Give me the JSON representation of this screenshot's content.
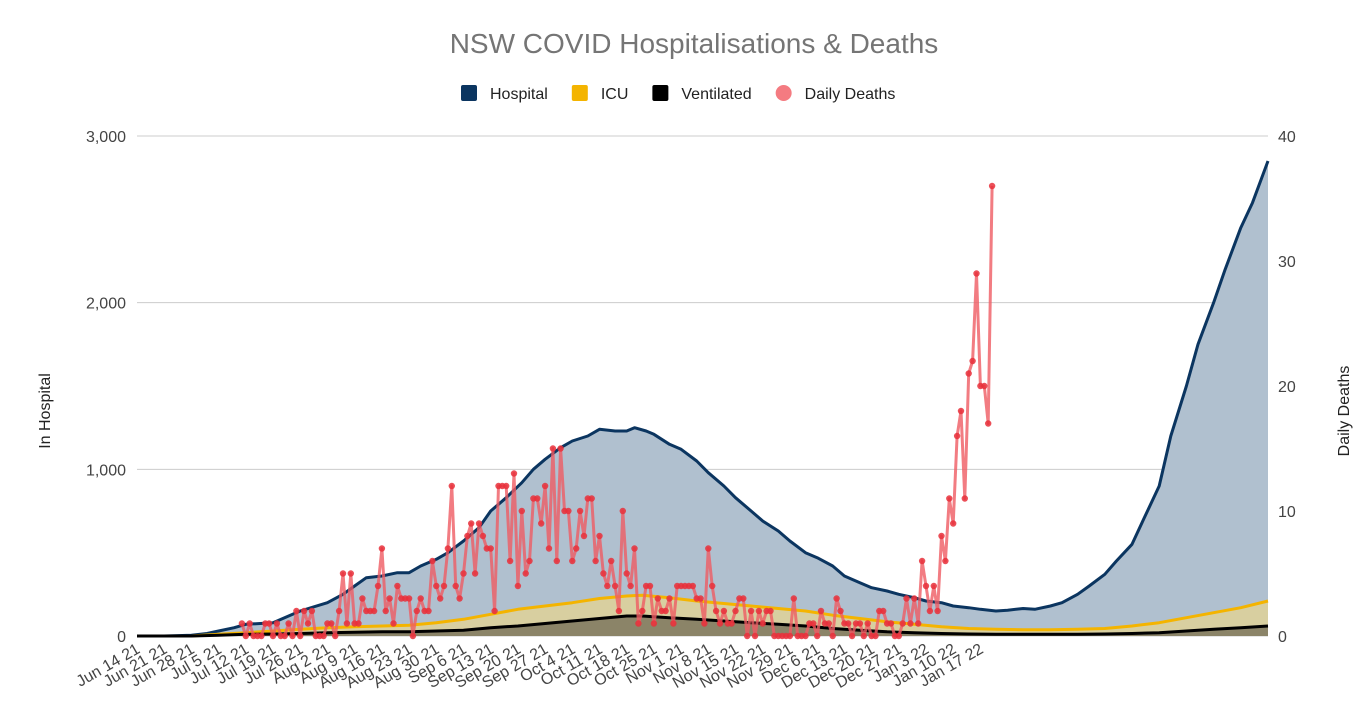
{
  "chart_data": {
    "type": "area",
    "title": "NSW COVID Hospitalisations & Deaths",
    "ylabel_left": "In Hospital",
    "ylabel_right": "Daily Deaths",
    "ylim_left": [
      0,
      3000
    ],
    "ylim_right": [
      0,
      40
    ],
    "yticks_left": [
      0,
      1000,
      2000,
      3000
    ],
    "ytick_labels_left": [
      "0",
      "1,000",
      "2,000",
      "3,000"
    ],
    "yticks_right": [
      0,
      10,
      20,
      30,
      40
    ],
    "ytick_labels_right": [
      "0",
      "10",
      "20",
      "30",
      "40"
    ],
    "grid": true,
    "legend_position": "top-center",
    "x_labels": [
      "Jun 14 21",
      "Jun 21 21",
      "Jun 28 21",
      "Jul 5 21",
      "Jul 12 21",
      "Jul 19 21",
      "Jul 26 21",
      "Aug 2 21",
      "Aug 9 21",
      "Aug 16 21",
      "Aug 23 21",
      "Aug 30 21",
      "Sep 6 21",
      "Sep 13 21",
      "Sep 20 21",
      "Sep 27 21",
      "Oct 4 21",
      "Oct 11 21",
      "Oct 18 21",
      "Oct 25 21",
      "Nov 1 21",
      "Nov 8 21",
      "Nov 15 21",
      "Nov 22 21",
      "Nov 29 21",
      "Dec 6 21",
      "Dec 13 21",
      "Dec 20 21",
      "Dec 27 21",
      "Jan 3 22",
      "Jan 10 22",
      "Jan 17 22"
    ],
    "x_day_start": 0,
    "x_day_end": 218,
    "series": [
      {
        "name": "Hospital",
        "color": "#0b3560",
        "fill": "#b0c0cf",
        "axis": "left",
        "points": [
          [
            0,
            0
          ],
          [
            7,
            0
          ],
          [
            14,
            5
          ],
          [
            18,
            15
          ],
          [
            21,
            30
          ],
          [
            25,
            50
          ],
          [
            28,
            70
          ],
          [
            35,
            80
          ],
          [
            39,
            120
          ],
          [
            42,
            150
          ],
          [
            49,
            200
          ],
          [
            53,
            250
          ],
          [
            56,
            300
          ],
          [
            59,
            350
          ],
          [
            63,
            360
          ],
          [
            67,
            380
          ],
          [
            70,
            380
          ],
          [
            73,
            420
          ],
          [
            77,
            460
          ],
          [
            80,
            500
          ],
          [
            84,
            570
          ],
          [
            88,
            650
          ],
          [
            91,
            750
          ],
          [
            95,
            830
          ],
          [
            99,
            920
          ],
          [
            102,
            1000
          ],
          [
            105,
            1060
          ],
          [
            109,
            1130
          ],
          [
            112,
            1170
          ],
          [
            116,
            1200
          ],
          [
            119,
            1240
          ],
          [
            123,
            1230
          ],
          [
            126,
            1230
          ],
          [
            128,
            1250
          ],
          [
            131,
            1230
          ],
          [
            133,
            1210
          ],
          [
            137,
            1150
          ],
          [
            140,
            1120
          ],
          [
            144,
            1050
          ],
          [
            147,
            980
          ],
          [
            151,
            900
          ],
          [
            154,
            830
          ],
          [
            158,
            750
          ],
          [
            161,
            690
          ],
          [
            165,
            630
          ],
          [
            168,
            570
          ],
          [
            172,
            500
          ],
          [
            175,
            470
          ],
          [
            179,
            420
          ],
          [
            182,
            360
          ],
          [
            186,
            320
          ],
          [
            189,
            290
          ],
          [
            193,
            270
          ],
          [
            196,
            250
          ],
          [
            200,
            230
          ],
          [
            203,
            210
          ],
          [
            207,
            200
          ],
          [
            210,
            180
          ],
          [
            214,
            170
          ],
          [
            217,
            160
          ],
          [
            221,
            150
          ],
          [
            224,
            155
          ],
          [
            228,
            165
          ],
          [
            231,
            160
          ],
          [
            235,
            180
          ],
          [
            238,
            200
          ],
          [
            242,
            250
          ],
          [
            245,
            300
          ],
          [
            249,
            370
          ],
          [
            252,
            450
          ],
          [
            256,
            550
          ],
          [
            259,
            700
          ],
          [
            263,
            900
          ],
          [
            266,
            1200
          ],
          [
            270,
            1500
          ],
          [
            273,
            1750
          ],
          [
            277,
            2000
          ],
          [
            280,
            2200
          ],
          [
            284,
            2450
          ],
          [
            287,
            2600
          ],
          [
            291,
            2850
          ]
        ]
      },
      {
        "name": "ICU",
        "color": "#f4b400",
        "fill": "#d8cfa0",
        "axis": "left",
        "points": [
          [
            0,
            0
          ],
          [
            14,
            0
          ],
          [
            21,
            10
          ],
          [
            28,
            20
          ],
          [
            35,
            30
          ],
          [
            42,
            40
          ],
          [
            49,
            50
          ],
          [
            56,
            55
          ],
          [
            63,
            60
          ],
          [
            70,
            65
          ],
          [
            77,
            80
          ],
          [
            84,
            100
          ],
          [
            91,
            130
          ],
          [
            98,
            160
          ],
          [
            105,
            180
          ],
          [
            112,
            200
          ],
          [
            119,
            225
          ],
          [
            126,
            240
          ],
          [
            130,
            245
          ],
          [
            137,
            230
          ],
          [
            144,
            210
          ],
          [
            151,
            195
          ],
          [
            158,
            180
          ],
          [
            165,
            165
          ],
          [
            172,
            150
          ],
          [
            179,
            125
          ],
          [
            186,
            105
          ],
          [
            193,
            85
          ],
          [
            200,
            70
          ],
          [
            207,
            55
          ],
          [
            214,
            45
          ],
          [
            221,
            40
          ],
          [
            228,
            38
          ],
          [
            235,
            38
          ],
          [
            242,
            40
          ],
          [
            249,
            45
          ],
          [
            256,
            60
          ],
          [
            263,
            80
          ],
          [
            270,
            110
          ],
          [
            277,
            140
          ],
          [
            284,
            170
          ],
          [
            291,
            210
          ]
        ]
      },
      {
        "name": "Ventilated",
        "color": "#000000",
        "fill": "#8b8468",
        "axis": "left",
        "points": [
          [
            0,
            0
          ],
          [
            14,
            0
          ],
          [
            21,
            5
          ],
          [
            28,
            10
          ],
          [
            35,
            12
          ],
          [
            42,
            15
          ],
          [
            49,
            20
          ],
          [
            56,
            22
          ],
          [
            63,
            25
          ],
          [
            70,
            25
          ],
          [
            77,
            30
          ],
          [
            84,
            35
          ],
          [
            91,
            50
          ],
          [
            98,
            60
          ],
          [
            105,
            75
          ],
          [
            112,
            90
          ],
          [
            119,
            105
          ],
          [
            126,
            120
          ],
          [
            130,
            120
          ],
          [
            137,
            110
          ],
          [
            144,
            100
          ],
          [
            151,
            90
          ],
          [
            158,
            80
          ],
          [
            165,
            70
          ],
          [
            172,
            60
          ],
          [
            179,
            45
          ],
          [
            186,
            35
          ],
          [
            193,
            25
          ],
          [
            200,
            20
          ],
          [
            207,
            15
          ],
          [
            214,
            12
          ],
          [
            221,
            10
          ],
          [
            228,
            10
          ],
          [
            235,
            10
          ],
          [
            242,
            10
          ],
          [
            249,
            12
          ],
          [
            256,
            15
          ],
          [
            263,
            20
          ],
          [
            270,
            30
          ],
          [
            277,
            40
          ],
          [
            284,
            50
          ],
          [
            291,
            60
          ]
        ]
      },
      {
        "name": "Daily Deaths",
        "color": "#ef5b63",
        "axis": "right",
        "values_start_day": 27,
        "values": [
          1,
          0,
          1,
          0,
          0,
          0,
          1,
          1,
          0,
          1,
          0,
          0,
          1,
          0,
          2,
          0,
          2,
          1,
          2,
          0,
          0,
          0,
          1,
          1,
          0,
          2,
          5,
          1,
          5,
          1,
          1,
          3,
          2,
          2,
          2,
          4,
          7,
          2,
          3,
          1,
          4,
          3,
          3,
          3,
          0,
          2,
          3,
          2,
          2,
          6,
          4,
          3,
          4,
          7,
          12,
          4,
          3,
          5,
          8,
          9,
          5,
          9,
          8,
          7,
          7,
          2,
          12,
          12,
          12,
          6,
          13,
          4,
          10,
          5,
          6,
          11,
          11,
          9,
          12,
          7,
          15,
          6,
          15,
          10,
          10,
          6,
          7,
          10,
          8,
          11,
          11,
          6,
          8,
          5,
          4,
          6,
          4,
          2,
          10,
          5,
          4,
          7,
          1,
          2,
          4,
          4,
          1,
          3,
          2,
          2,
          3,
          1,
          4,
          4,
          4,
          4,
          4,
          3,
          3,
          1,
          7,
          4,
          2,
          1,
          2,
          1,
          1,
          2,
          3,
          3,
          0,
          2,
          0,
          2,
          1,
          2,
          2,
          0,
          0,
          0,
          0,
          0,
          3,
          0,
          0,
          0,
          1,
          1,
          0,
          2,
          1,
          1,
          0,
          3,
          2,
          1,
          1,
          0,
          1,
          1,
          0,
          1,
          0,
          0,
          2,
          2,
          1,
          1,
          0,
          0,
          1,
          3,
          1,
          3,
          1,
          6,
          4,
          2,
          4,
          2,
          8,
          6,
          11,
          9,
          16,
          18,
          11,
          21,
          22,
          29,
          20,
          20,
          17,
          36
        ]
      }
    ]
  }
}
